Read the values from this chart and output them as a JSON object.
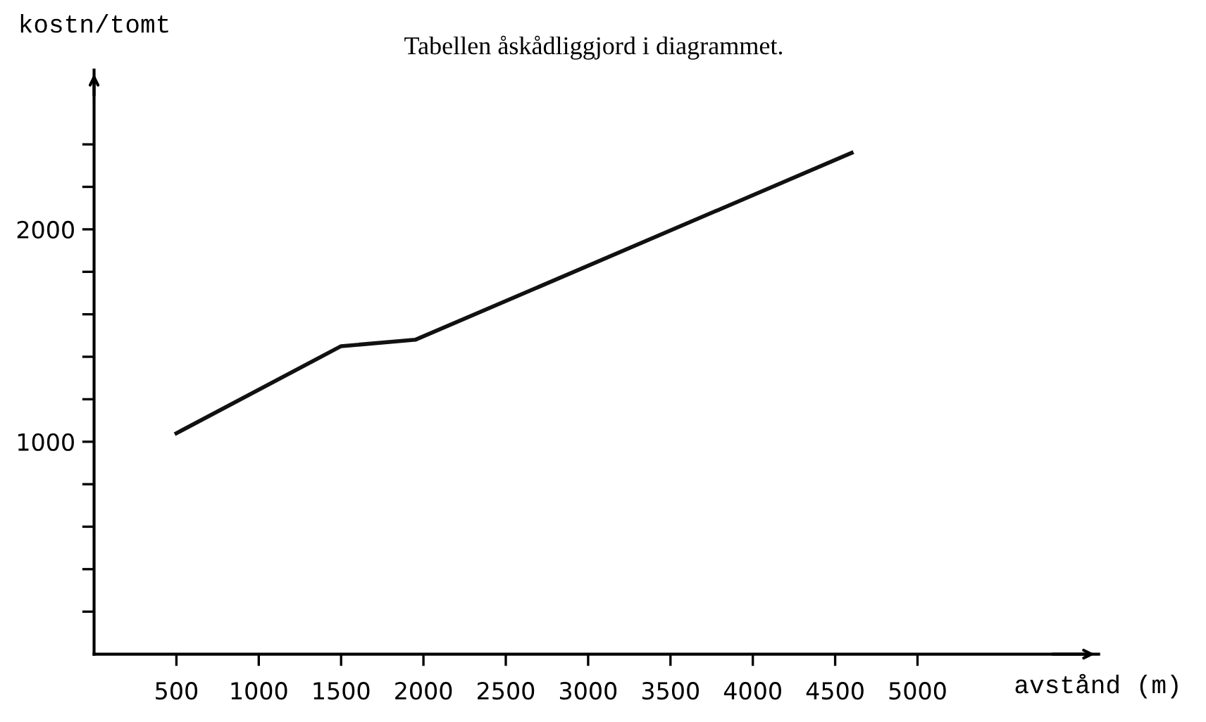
{
  "chart_data": {
    "type": "line",
    "ylabel": "kostn/tomt",
    "xlabel": "avstånd (m)",
    "annotations": [
      "Tabellen åskådliggjord i diagrammet."
    ],
    "x": [
      500,
      1500,
      1950,
      4600
    ],
    "series": [
      {
        "color": "#111111",
        "values": [
          1040,
          1450,
          1480,
          2360
        ]
      }
    ],
    "xlim": [
      0,
      6100
    ],
    "ylim": [
      0,
      2750
    ],
    "xticks": [
      500,
      1000,
      1500,
      2000,
      2500,
      3000,
      3500,
      4000,
      4500,
      5000
    ],
    "yticks": [
      {
        "value": 200,
        "label": null
      },
      {
        "value": 400,
        "label": null
      },
      {
        "value": 600,
        "label": null
      },
      {
        "value": 800,
        "label": null
      },
      1000,
      {
        "value": 1200,
        "label": null
      },
      {
        "value": 1400,
        "label": null
      },
      {
        "value": 1600,
        "label": null
      },
      {
        "value": 1800,
        "label": null
      },
      2000,
      {
        "value": 2200,
        "label": null
      },
      {
        "value": 2400,
        "label": null
      }
    ],
    "grid": false,
    "legend": false,
    "marker": "none",
    "line_style": "solid"
  }
}
